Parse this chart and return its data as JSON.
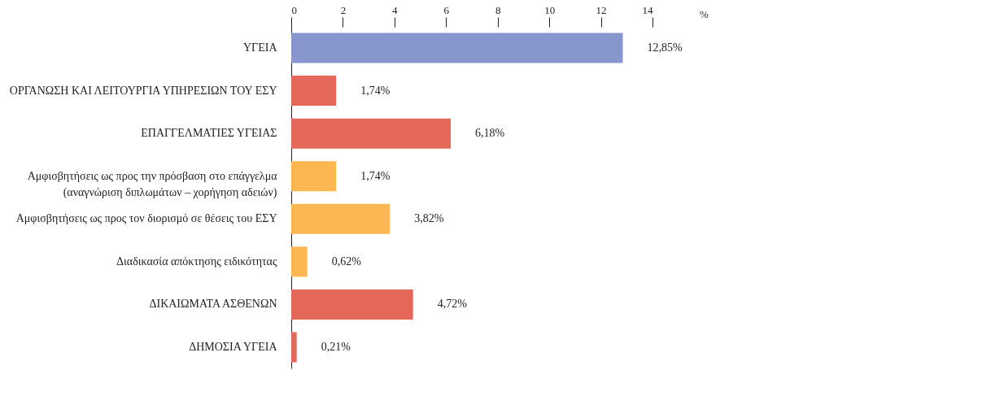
{
  "chart_data": {
    "type": "bar",
    "orientation": "horizontal",
    "xlabel": "%",
    "categories": [
      "ΥΓΕΙΑ",
      "ΟΡΓΑΝΩΣΗ ΚΑΙ ΛΕΙΤΟΥΡΓΙΑ ΥΠΗΡΕΣΙΩΝ ΤΟΥ ΕΣΥ",
      "ΕΠΑΓΓΕΛΜΑΤΙΕΣ ΥΓΕΙΑΣ",
      "Αμφισβητήσεις ως προς την πρόσβαση στο επάγγελμα (αναγνώριση διπλωμάτων – χορήγηση αδειών)",
      "Αμφισβητήσεις ως προς τον διορισμό σε θέσεις του ΕΣΥ",
      "Διαδικασία απόκτησης ειδικότητας",
      "ΔΙΚΑΙΩΜΑΤΑ ΑΣΘΕΝΩΝ",
      "ΔΗΜΟΣΙΑ ΥΓΕΙΑ"
    ],
    "values": [
      12.85,
      1.74,
      6.18,
      1.74,
      3.82,
      0.62,
      4.72,
      0.21
    ],
    "colors": [
      "#8797cd",
      "#e4685a",
      "#e4685a",
      "#fdb752",
      "#fdb752",
      "#fdb752",
      "#e4685a",
      "#e4685a"
    ],
    "value_labels": [
      "12,85%",
      "1,74%",
      "6,18%",
      "1,74%",
      "3,82%",
      "0,62%",
      "4,72%",
      "0,21%"
    ],
    "xlim": [
      0,
      14
    ],
    "xticks": [
      0,
      2,
      4,
      6,
      8,
      10,
      12,
      14
    ],
    "grid": false,
    "legend": false
  }
}
